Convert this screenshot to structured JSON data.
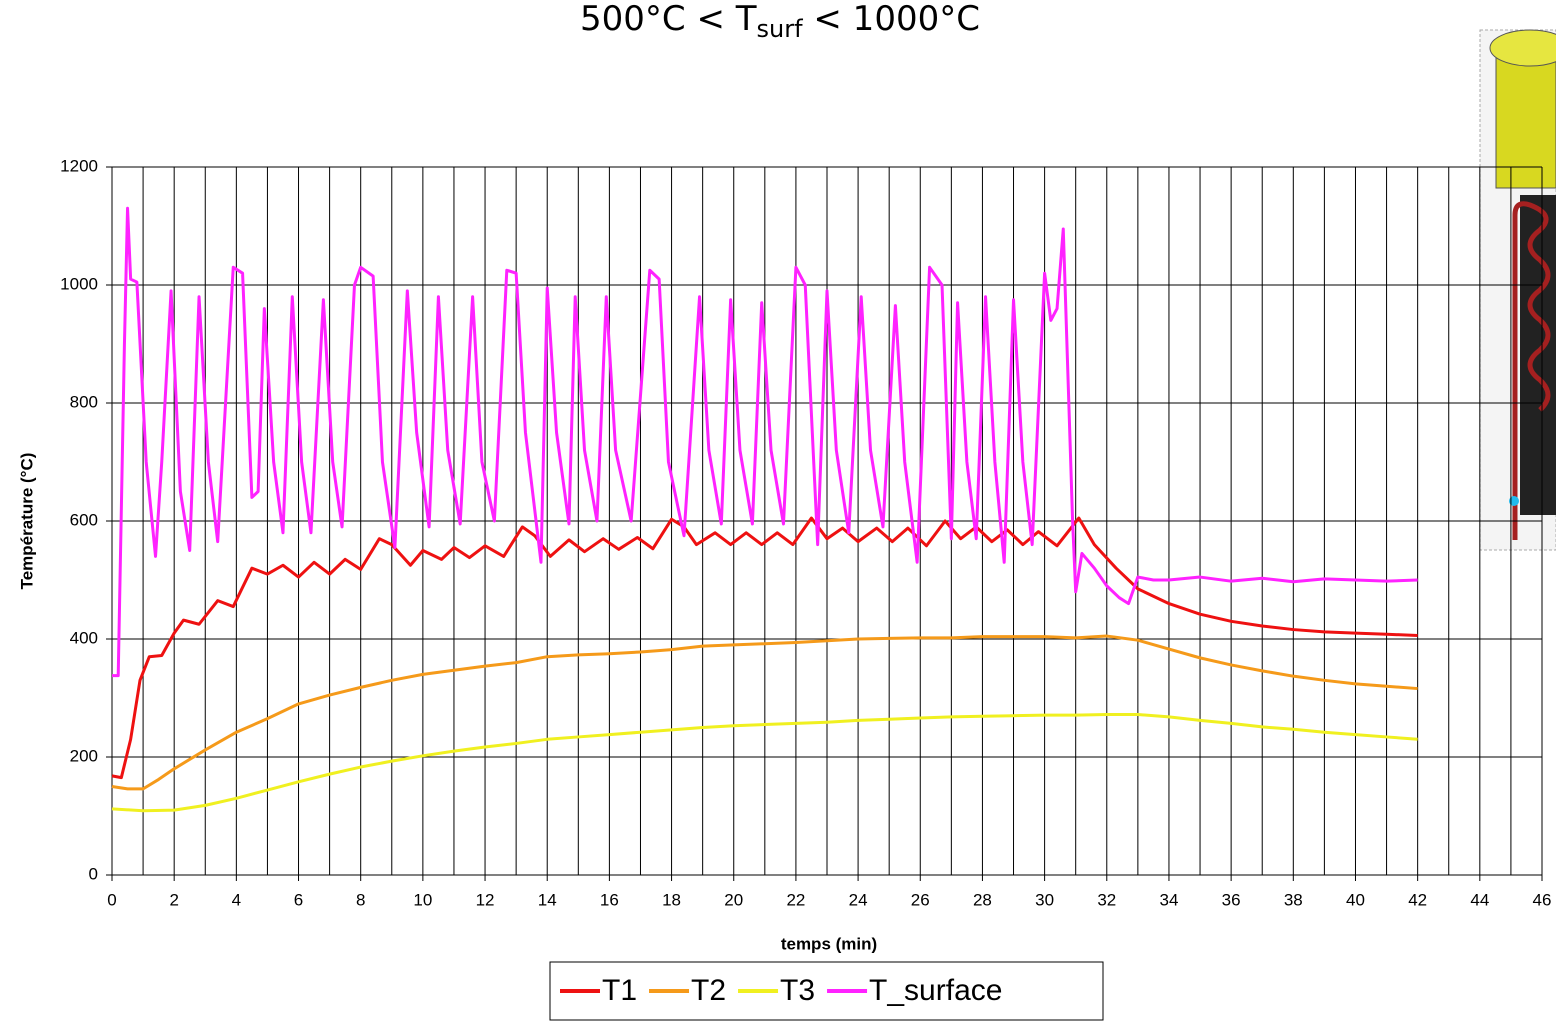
{
  "chart_data": {
    "type": "line",
    "title": [
      "500°C < T",
      "surf",
      " < 1000°C"
    ],
    "xlabel": "temps (min)",
    "ylabel": "Température (°C)",
    "xlim": [
      0,
      46
    ],
    "ylim": [
      0,
      1200
    ],
    "xticks": [
      0,
      2,
      4,
      6,
      8,
      10,
      12,
      14,
      16,
      18,
      20,
      22,
      24,
      26,
      28,
      30,
      32,
      34,
      36,
      38,
      40,
      42,
      44,
      46
    ],
    "x_minor_grid": [
      1,
      3,
      5,
      7,
      9,
      11,
      13,
      15,
      17,
      19,
      21,
      23,
      25,
      27,
      29,
      31,
      33,
      35,
      37,
      39,
      41,
      43,
      45
    ],
    "yticks": [
      0,
      200,
      400,
      600,
      800,
      1000,
      1200
    ],
    "grid": true,
    "legend": "bottom",
    "series": [
      {
        "name": "T1",
        "color": "#ee1111",
        "x": [
          0,
          0.3,
          0.6,
          0.9,
          1.2,
          1.6,
          2,
          2.3,
          2.8,
          3.4,
          3.9,
          4.5,
          5,
          5.5,
          6,
          6.5,
          7,
          7.5,
          8,
          8.6,
          9,
          9.6,
          10,
          10.6,
          11,
          11.5,
          12,
          12.6,
          13.2,
          13.6,
          14.1,
          14.7,
          15.2,
          15.8,
          16.3,
          16.9,
          17.4,
          18,
          18.4,
          18.8,
          19.4,
          19.9,
          20.4,
          20.9,
          21.4,
          21.9,
          22.5,
          23,
          23.5,
          24,
          24.6,
          25.1,
          25.6,
          26.2,
          26.8,
          27.3,
          27.8,
          28.3,
          28.8,
          29.3,
          29.8,
          30.4,
          31.1,
          31.6,
          32.3,
          33,
          34,
          35,
          36,
          37,
          38,
          39,
          40,
          41,
          42
        ],
        "values": [
          168,
          165,
          230,
          330,
          370,
          372,
          410,
          432,
          425,
          465,
          455,
          520,
          510,
          525,
          505,
          530,
          510,
          535,
          518,
          570,
          560,
          525,
          550,
          535,
          555,
          538,
          558,
          540,
          590,
          575,
          540,
          568,
          548,
          570,
          552,
          572,
          553,
          603,
          590,
          560,
          580,
          560,
          580,
          560,
          580,
          560,
          605,
          570,
          588,
          565,
          588,
          565,
          588,
          558,
          600,
          570,
          590,
          565,
          585,
          560,
          582,
          558,
          605,
          560,
          520,
          485,
          460,
          442,
          430,
          422,
          416,
          412,
          410,
          408,
          406
        ]
      },
      {
        "name": "T2",
        "color": "#f59a1a",
        "x": [
          0,
          0.5,
          1,
          1.5,
          2,
          3,
          4,
          5,
          6,
          7,
          8,
          9,
          10,
          11,
          12,
          13,
          14,
          15,
          16,
          17,
          18,
          19,
          20,
          21,
          22,
          23,
          24,
          25,
          26,
          27,
          28,
          29,
          30,
          31,
          32,
          33,
          34,
          35,
          36,
          37,
          38,
          39,
          40,
          41,
          42
        ],
        "values": [
          150,
          146,
          146,
          162,
          180,
          212,
          242,
          265,
          290,
          305,
          318,
          330,
          340,
          347,
          354,
          360,
          370,
          373,
          375,
          378,
          382,
          388,
          390,
          392,
          394,
          397,
          400,
          401,
          402,
          402,
          404,
          404,
          404,
          402,
          405,
          398,
          383,
          368,
          356,
          346,
          337,
          330,
          324,
          320,
          316
        ]
      },
      {
        "name": "T3",
        "color": "#f0f020",
        "x": [
          0,
          1,
          2,
          3,
          4,
          5,
          6,
          7,
          8,
          9,
          10,
          11,
          12,
          13,
          14,
          15,
          16,
          17,
          18,
          19,
          20,
          21,
          22,
          23,
          24,
          25,
          26,
          27,
          28,
          29,
          30,
          31,
          32,
          33,
          34,
          35,
          36,
          37,
          38,
          39,
          40,
          41,
          42
        ],
        "values": [
          112,
          109,
          110,
          118,
          130,
          144,
          158,
          171,
          183,
          193,
          202,
          210,
          217,
          223,
          230,
          234,
          238,
          242,
          246,
          250,
          253,
          255,
          257,
          259,
          262,
          264,
          266,
          268,
          269,
          270,
          271,
          271,
          272,
          272,
          268,
          262,
          257,
          251,
          247,
          242,
          238,
          234,
          230
        ]
      },
      {
        "name": "T_surface",
        "color": "#ff22ff",
        "x": [
          0,
          0.2,
          0.4,
          0.5,
          0.6,
          0.8,
          1.1,
          1.4,
          1.6,
          1.9,
          2.2,
          2.5,
          2.8,
          3.1,
          3.4,
          3.9,
          4.2,
          4.5,
          4.7,
          4.9,
          5.2,
          5.5,
          5.8,
          6.1,
          6.4,
          6.8,
          7.1,
          7.4,
          7.8,
          8.0,
          8.4,
          8.7,
          9.1,
          9.5,
          9.8,
          10.2,
          10.5,
          10.8,
          11.2,
          11.6,
          11.9,
          12.3,
          12.7,
          13.0,
          13.3,
          13.8,
          14.0,
          14.3,
          14.7,
          14.9,
          15.2,
          15.6,
          15.9,
          16.2,
          16.7,
          17.3,
          17.6,
          17.9,
          18.4,
          18.9,
          19.2,
          19.6,
          19.9,
          20.2,
          20.6,
          20.9,
          21.2,
          21.6,
          22.0,
          22.3,
          22.7,
          23.0,
          23.3,
          23.7,
          24.1,
          24.4,
          24.8,
          25.2,
          25.5,
          25.9,
          26.3,
          26.7,
          27.0,
          27.2,
          27.5,
          27.8,
          28.1,
          28.4,
          28.7,
          29.0,
          29.3,
          29.6,
          30.0,
          30.2,
          30.4,
          30.6,
          30.9,
          31.0,
          31.2,
          31.6,
          32.0,
          32.4,
          32.7,
          33.0,
          33.5,
          34,
          35,
          36,
          37,
          38,
          39,
          40,
          41,
          42
        ],
        "values": [
          338,
          338,
          900,
          1130,
          1010,
          1005,
          700,
          540,
          700,
          990,
          650,
          550,
          980,
          700,
          565,
          1030,
          1020,
          640,
          650,
          960,
          700,
          580,
          980,
          700,
          580,
          975,
          700,
          590,
          1000,
          1030,
          1015,
          700,
          555,
          990,
          750,
          590,
          980,
          720,
          595,
          980,
          700,
          600,
          1025,
          1020,
          750,
          530,
          995,
          750,
          595,
          980,
          720,
          600,
          980,
          720,
          600,
          1025,
          1010,
          700,
          575,
          980,
          720,
          595,
          975,
          720,
          595,
          970,
          720,
          595,
          1030,
          1000,
          560,
          990,
          720,
          580,
          980,
          720,
          590,
          965,
          700,
          530,
          1030,
          1000,
          570,
          970,
          700,
          570,
          980,
          700,
          530,
          975,
          700,
          560,
          1020,
          940,
          960,
          1095,
          600,
          480,
          545,
          520,
          490,
          470,
          460,
          505,
          500,
          500,
          505,
          498,
          503,
          497,
          502,
          500,
          498,
          500
        ]
      }
    ]
  }
}
